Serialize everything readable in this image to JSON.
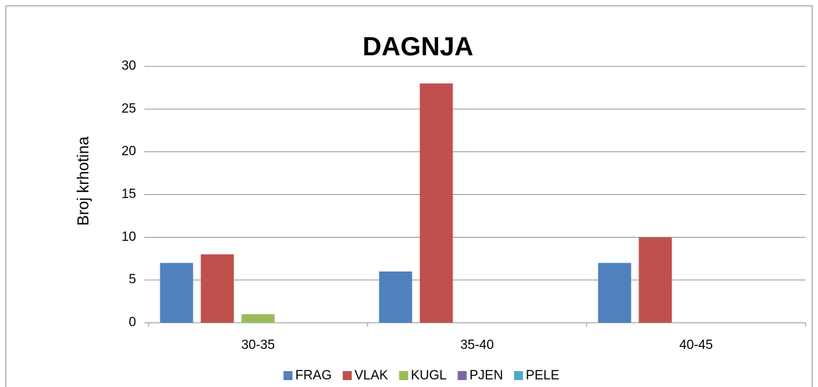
{
  "chart_data": {
    "type": "bar",
    "title": "DAGNJA",
    "y_label": "Broj krhotina",
    "categories": [
      "30-35",
      "35-40",
      "40-45"
    ],
    "series": [
      {
        "name": "FRAG",
        "color": "#4f81bd",
        "values": [
          7,
          6,
          7
        ]
      },
      {
        "name": "VLAK",
        "color": "#c0504d",
        "values": [
          8,
          28,
          10
        ]
      },
      {
        "name": "KUGL",
        "color": "#9bbb59",
        "values": [
          1,
          0,
          0
        ]
      },
      {
        "name": "PJEN",
        "color": "#8064a2",
        "values": [
          0,
          0,
          0
        ]
      },
      {
        "name": "PELE",
        "color": "#4bacc6",
        "values": [
          0,
          0,
          0
        ]
      }
    ],
    "ylim": [
      0,
      30
    ],
    "yticks": [
      0,
      5,
      10,
      15,
      20,
      25,
      30
    ],
    "grid": true,
    "legend": "bottom"
  }
}
